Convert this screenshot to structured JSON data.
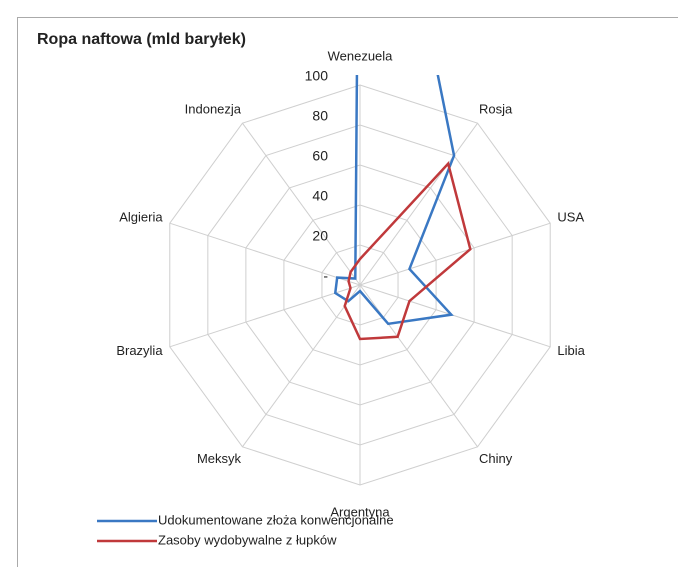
{
  "chart_data": {
    "type": "radar",
    "title": "Ropa naftowa (mld baryłek)",
    "categories": [
      "Wenezuela",
      "Rosja",
      "USA",
      "Libia",
      "Chiny",
      "Argentyna",
      "Meksyk",
      "Brazylia",
      "Algieria",
      "Indonezja"
    ],
    "series": [
      {
        "name": "Udokumentowane złoża konwencjonalne",
        "color": "#3a78c3",
        "values": [
          298,
          80,
          26,
          48,
          24,
          3,
          10,
          13,
          12,
          4
        ]
      },
      {
        "name": "Zasoby wydobywalne z łupków",
        "color": "#c0393b",
        "values": [
          13,
          75,
          58,
          26,
          32,
          27,
          13,
          5,
          6,
          8
        ]
      }
    ],
    "ylim": [
      0,
      100
    ],
    "yticks": [
      {
        "value": 0,
        "label": "-"
      },
      20,
      40,
      60,
      80,
      100
    ],
    "grid": true,
    "legend": "bottom"
  }
}
